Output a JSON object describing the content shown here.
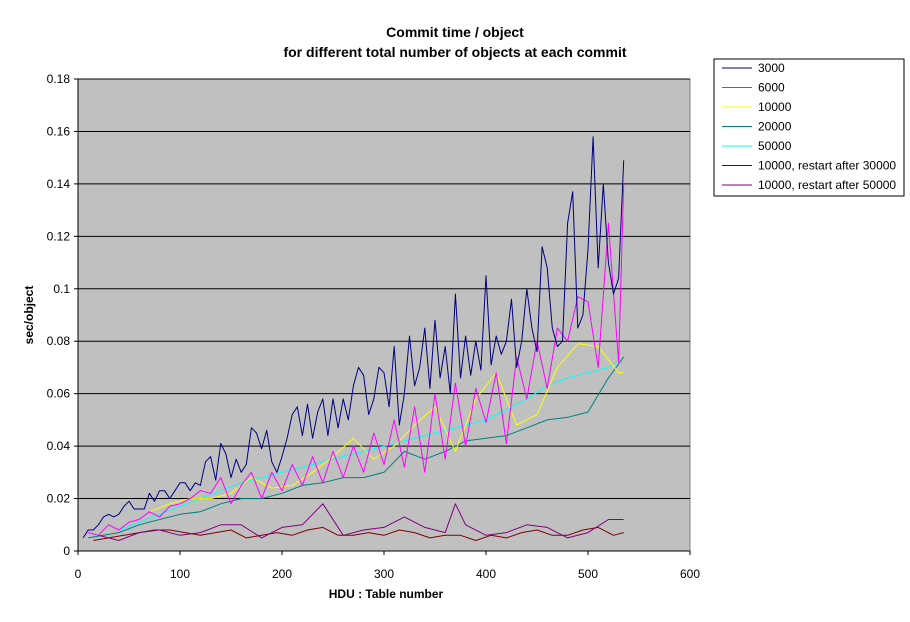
{
  "chart_data": {
    "type": "line",
    "title_line1": "Commit time / object",
    "title_line2": "for different total number of objects at each commit",
    "xlabel": "HDU : Table number",
    "ylabel": "sec/object",
    "xlim": [
      0,
      600
    ],
    "ylim": [
      0,
      0.18
    ],
    "x_ticks": [
      "0",
      "100",
      "200",
      "300",
      "400",
      "500",
      "600"
    ],
    "y_ticks": [
      "0",
      "0.02",
      "0.04",
      "0.06",
      "0.08",
      "0.1",
      "0.12",
      "0.14",
      "0.16",
      "0.18"
    ],
    "x_tick_values": [
      0,
      100,
      200,
      300,
      400,
      500,
      600
    ],
    "y_tick_values": [
      0,
      0.02,
      0.04,
      0.06,
      0.08,
      0.1,
      0.12,
      0.14,
      0.16,
      0.18
    ],
    "grid": "horizontal",
    "plot_background": "#c0c0c0",
    "legend_position": "right",
    "series": [
      {
        "name": "3000",
        "color": "#000080",
        "x": [
          5,
          10,
          15,
          20,
          25,
          30,
          35,
          40,
          45,
          50,
          55,
          60,
          65,
          70,
          75,
          80,
          85,
          90,
          95,
          100,
          105,
          110,
          115,
          120,
          125,
          130,
          135,
          140,
          145,
          150,
          155,
          160,
          165,
          170,
          175,
          180,
          185,
          190,
          195,
          200,
          205,
          210,
          215,
          220,
          225,
          230,
          235,
          240,
          245,
          250,
          255,
          260,
          265,
          270,
          275,
          280,
          285,
          290,
          295,
          300,
          305,
          310,
          315,
          320,
          325,
          330,
          335,
          340,
          345,
          350,
          355,
          360,
          365,
          370,
          375,
          380,
          385,
          390,
          395,
          400,
          405,
          410,
          415,
          420,
          425,
          430,
          435,
          440,
          445,
          450,
          455,
          460,
          465,
          470,
          475,
          480,
          485,
          490,
          495,
          500,
          505,
          510,
          515,
          520,
          525,
          530,
          535
        ],
        "y": [
          0.005,
          0.008,
          0.008,
          0.01,
          0.013,
          0.014,
          0.013,
          0.014,
          0.017,
          0.019,
          0.016,
          0.016,
          0.016,
          0.022,
          0.019,
          0.023,
          0.023,
          0.02,
          0.023,
          0.026,
          0.026,
          0.023,
          0.026,
          0.025,
          0.034,
          0.036,
          0.027,
          0.041,
          0.037,
          0.028,
          0.035,
          0.03,
          0.033,
          0.047,
          0.045,
          0.039,
          0.046,
          0.034,
          0.03,
          0.036,
          0.043,
          0.052,
          0.055,
          0.044,
          0.056,
          0.043,
          0.053,
          0.058,
          0.044,
          0.058,
          0.047,
          0.058,
          0.05,
          0.063,
          0.07,
          0.067,
          0.052,
          0.058,
          0.07,
          0.068,
          0.055,
          0.078,
          0.048,
          0.06,
          0.082,
          0.063,
          0.07,
          0.085,
          0.062,
          0.088,
          0.066,
          0.078,
          0.06,
          0.098,
          0.066,
          0.082,
          0.067,
          0.08,
          0.069,
          0.105,
          0.071,
          0.082,
          0.075,
          0.08,
          0.096,
          0.07,
          0.08,
          0.1,
          0.085,
          0.076,
          0.116,
          0.108,
          0.085,
          0.078,
          0.08,
          0.125,
          0.137,
          0.085,
          0.09,
          0.115,
          0.158,
          0.108,
          0.14,
          0.11,
          0.098,
          0.104,
          0.149
        ]
      },
      {
        "name": "6000",
        "color": "#ff00ff",
        "x": [
          10,
          20,
          30,
          40,
          50,
          60,
          70,
          80,
          90,
          100,
          110,
          120,
          130,
          140,
          150,
          160,
          170,
          180,
          190,
          200,
          210,
          220,
          230,
          240,
          250,
          260,
          270,
          280,
          290,
          300,
          310,
          320,
          330,
          340,
          350,
          360,
          370,
          380,
          390,
          400,
          410,
          420,
          430,
          440,
          450,
          460,
          470,
          480,
          490,
          500,
          510,
          520,
          530,
          535
        ],
        "y": [
          0.007,
          0.006,
          0.01,
          0.008,
          0.011,
          0.012,
          0.015,
          0.013,
          0.017,
          0.018,
          0.02,
          0.023,
          0.022,
          0.028,
          0.018,
          0.025,
          0.03,
          0.02,
          0.03,
          0.023,
          0.033,
          0.025,
          0.036,
          0.026,
          0.038,
          0.028,
          0.04,
          0.03,
          0.045,
          0.033,
          0.05,
          0.032,
          0.055,
          0.03,
          0.06,
          0.035,
          0.064,
          0.04,
          0.062,
          0.049,
          0.068,
          0.041,
          0.074,
          0.058,
          0.08,
          0.062,
          0.085,
          0.08,
          0.097,
          0.095,
          0.07,
          0.125,
          0.072,
          0.14
        ]
      },
      {
        "name": "10000",
        "color": "#ffff00",
        "x": [
          70,
          90,
          110,
          130,
          150,
          170,
          190,
          210,
          230,
          250,
          270,
          290,
          310,
          330,
          350,
          370,
          390,
          410,
          430,
          450,
          470,
          490,
          510,
          530,
          535
        ],
        "y": [
          0.015,
          0.018,
          0.02,
          0.02,
          0.022,
          0.028,
          0.024,
          0.025,
          0.03,
          0.036,
          0.043,
          0.035,
          0.04,
          0.048,
          0.055,
          0.038,
          0.058,
          0.068,
          0.048,
          0.052,
          0.07,
          0.079,
          0.078,
          0.068,
          0.068
        ]
      },
      {
        "name": "20000",
        "color": "#008080",
        "x": [
          10,
          40,
          60,
          80,
          100,
          120,
          140,
          160,
          180,
          200,
          220,
          240,
          260,
          280,
          300,
          320,
          340,
          360,
          380,
          400,
          420,
          440,
          460,
          480,
          500,
          520,
          535
        ],
        "y": [
          0.005,
          0.007,
          0.01,
          0.012,
          0.014,
          0.015,
          0.018,
          0.02,
          0.02,
          0.022,
          0.025,
          0.026,
          0.028,
          0.028,
          0.03,
          0.038,
          0.035,
          0.038,
          0.042,
          0.043,
          0.044,
          0.047,
          0.05,
          0.051,
          0.053,
          0.066,
          0.074
        ]
      },
      {
        "name": "50000",
        "color": "#00ffff",
        "x": [
          40,
          60,
          80,
          100,
          120,
          140,
          160,
          180,
          200,
          220,
          240,
          260,
          280,
          300,
          320,
          340,
          360,
          380,
          400,
          420,
          440,
          460,
          480,
          500,
          520,
          535
        ],
        "y": [
          0.008,
          0.011,
          0.014,
          0.017,
          0.02,
          0.023,
          0.026,
          0.028,
          0.03,
          0.032,
          0.034,
          0.036,
          0.038,
          0.04,
          0.042,
          0.044,
          0.046,
          0.048,
          0.05,
          0.054,
          0.058,
          0.063,
          0.066,
          0.068,
          0.07,
          0.074
        ]
      },
      {
        "name": "10000, restart after 30000",
        "color": "#800000",
        "x": [
          15,
          30,
          45,
          60,
          75,
          90,
          105,
          120,
          135,
          150,
          165,
          180,
          195,
          210,
          225,
          240,
          255,
          270,
          285,
          300,
          315,
          330,
          345,
          360,
          375,
          390,
          405,
          420,
          435,
          450,
          465,
          480,
          495,
          510,
          525,
          535
        ],
        "y": [
          0.004,
          0.005,
          0.006,
          0.007,
          0.008,
          0.008,
          0.007,
          0.006,
          0.007,
          0.008,
          0.005,
          0.006,
          0.007,
          0.006,
          0.008,
          0.009,
          0.006,
          0.006,
          0.007,
          0.006,
          0.008,
          0.007,
          0.005,
          0.006,
          0.006,
          0.004,
          0.006,
          0.005,
          0.007,
          0.008,
          0.006,
          0.006,
          0.008,
          0.009,
          0.006,
          0.007
        ]
      },
      {
        "name": "10000, restart after 50000",
        "color": "#800080",
        "x": [
          20,
          40,
          60,
          80,
          100,
          120,
          140,
          160,
          180,
          200,
          220,
          240,
          260,
          280,
          300,
          320,
          340,
          360,
          370,
          380,
          400,
          420,
          440,
          460,
          480,
          500,
          520,
          535
        ],
        "y": [
          0.006,
          0.004,
          0.007,
          0.008,
          0.006,
          0.007,
          0.01,
          0.01,
          0.005,
          0.009,
          0.01,
          0.018,
          0.006,
          0.008,
          0.009,
          0.013,
          0.009,
          0.007,
          0.018,
          0.01,
          0.006,
          0.007,
          0.01,
          0.009,
          0.005,
          0.007,
          0.012,
          0.012
        ]
      }
    ]
  }
}
